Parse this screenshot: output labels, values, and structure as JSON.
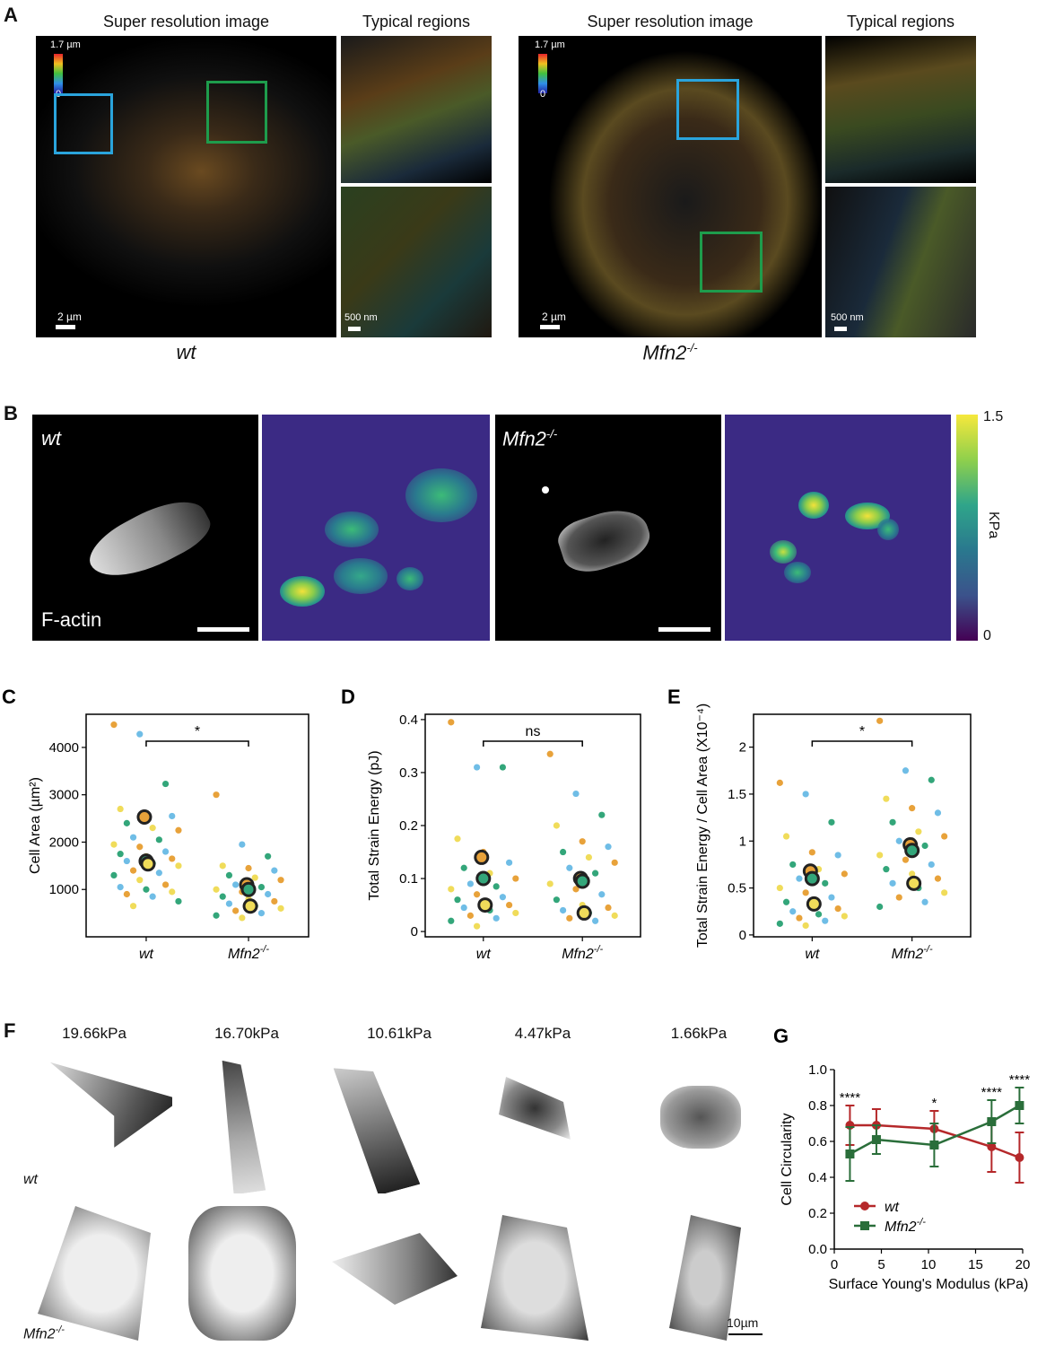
{
  "panelA": {
    "label": "A",
    "left": {
      "title": "Super resolution image",
      "regions_title": "Typical regions",
      "cbar_top": "1.7 µm",
      "cbar_bottom": "0",
      "scale_main": "2 µm",
      "scale_region": "500 nm",
      "genotype": "wt"
    },
    "right": {
      "title": "Super resolution image",
      "regions_title": "Typical regions",
      "cbar_top": "1.7 µm",
      "cbar_bottom": "0",
      "scale_main": "2 µm",
      "scale_region": "500 nm",
      "genotype_base": "Mfn2",
      "genotype_sup": "-/-"
    }
  },
  "panelB": {
    "label": "B",
    "wt_label": "wt",
    "mfn_base": "Mfn2",
    "mfn_sup": "-/-",
    "factin": "F-actin",
    "cbar_max": "1.5",
    "cbar_min": "0",
    "cbar_unit": "KPa"
  },
  "panelF": {
    "label": "F",
    "stiffness": [
      "19.66kPa",
      "16.70kPa",
      "10.61kPa",
      "4.47kPa",
      "1.66kPa"
    ],
    "row1": "wt",
    "row2_base": "Mfn2",
    "row2_sup": "-/-",
    "scale": "10µm"
  },
  "chart_data": [
    {
      "panel": "C",
      "type": "scatter",
      "ylabel": "Cell Area (µm²)",
      "categories": [
        "wt",
        "Mfn2-/-"
      ],
      "yticks": [
        1000,
        2000,
        3000,
        4000
      ],
      "ylim": [
        0,
        4700
      ],
      "significance": "*",
      "means": {
        "wt": [
          2530,
          1600,
          1540
        ],
        "Mfn2-/-": [
          1100,
          1000,
          650
        ]
      },
      "points_wt": [
        4480,
        4280,
        3230,
        2700,
        2600,
        2550,
        2400,
        2300,
        2250,
        2100,
        2050,
        1950,
        1900,
        1800,
        1750,
        1700,
        1650,
        1600,
        1550,
        1500,
        1400,
        1350,
        1300,
        1200,
        1100,
        1050,
        1000,
        950,
        900,
        850,
        750,
        650
      ],
      "points_mfn": [
        3000,
        1950,
        1700,
        1500,
        1450,
        1400,
        1300,
        1250,
        1200,
        1100,
        1050,
        1000,
        950,
        900,
        850,
        800,
        750,
        700,
        650,
        600,
        550,
        500,
        450,
        400
      ]
    },
    {
      "panel": "D",
      "type": "scatter",
      "ylabel": "Total Strain Energy (pJ)",
      "categories": [
        "wt",
        "Mfn2-/-"
      ],
      "yticks": [
        0,
        0.1,
        0.2,
        0.3,
        0.4
      ],
      "ylim": [
        -0.01,
        0.41
      ],
      "significance": "ns",
      "means": {
        "wt": [
          0.14,
          0.1,
          0.05
        ],
        "Mfn2-/-": [
          0.1,
          0.095,
          0.035
        ]
      },
      "points_wt": [
        0.395,
        0.31,
        0.31,
        0.175,
        0.15,
        0.13,
        0.12,
        0.11,
        0.1,
        0.09,
        0.085,
        0.08,
        0.07,
        0.065,
        0.06,
        0.055,
        0.05,
        0.045,
        0.04,
        0.035,
        0.03,
        0.025,
        0.02,
        0.01
      ],
      "points_mfn": [
        0.335,
        0.26,
        0.22,
        0.2,
        0.17,
        0.16,
        0.15,
        0.14,
        0.13,
        0.12,
        0.11,
        0.09,
        0.08,
        0.07,
        0.06,
        0.05,
        0.045,
        0.04,
        0.035,
        0.03,
        0.025,
        0.02
      ]
    },
    {
      "panel": "E",
      "type": "scatter",
      "ylabel": "Total Strain Energy / Cell Area (X10⁻⁴)",
      "categories": [
        "wt",
        "Mfn2-/-"
      ],
      "yticks": [
        0,
        0.5,
        1.0,
        1.5,
        2.0
      ],
      "ylim": [
        -0.02,
        2.35
      ],
      "significance": "*",
      "means": {
        "wt": [
          0.68,
          0.6,
          0.33
        ],
        "Mfn2-/-": [
          0.96,
          0.9,
          0.55
        ]
      },
      "points_wt": [
        1.62,
        1.5,
        1.2,
        1.05,
        0.88,
        0.85,
        0.75,
        0.7,
        0.65,
        0.6,
        0.55,
        0.5,
        0.45,
        0.4,
        0.35,
        0.3,
        0.28,
        0.25,
        0.22,
        0.2,
        0.18,
        0.15,
        0.12,
        0.1
      ],
      "points_mfn": [
        2.28,
        1.75,
        1.65,
        1.45,
        1.35,
        1.3,
        1.2,
        1.1,
        1.05,
        1.0,
        0.95,
        0.85,
        0.8,
        0.75,
        0.7,
        0.65,
        0.6,
        0.55,
        0.5,
        0.45,
        0.4,
        0.35,
        0.3
      ]
    },
    {
      "panel": "G",
      "type": "line",
      "xlabel": "Surface Young's Modulus (kPa)",
      "ylabel": "Cell Circularity",
      "xticks": [
        0,
        5,
        10,
        15,
        20
      ],
      "yticks": [
        0.0,
        0.2,
        0.4,
        0.6,
        0.8,
        1.0
      ],
      "xlim": [
        0,
        20
      ],
      "ylim": [
        0,
        1.0
      ],
      "significance": [
        {
          "x": 1.66,
          "label": "****"
        },
        {
          "x": 10.61,
          "label": "*"
        },
        {
          "x": 16.7,
          "label": "****"
        },
        {
          "x": 19.66,
          "label": "****"
        }
      ],
      "series": [
        {
          "name": "wt",
          "color": "#b5282a",
          "marker": "circle",
          "x": [
            1.66,
            4.47,
            10.61,
            16.7,
            19.66
          ],
          "y": [
            0.69,
            0.69,
            0.67,
            0.57,
            0.51
          ],
          "err": [
            0.11,
            0.09,
            0.1,
            0.14,
            0.14
          ]
        },
        {
          "name": "Mfn2-/-",
          "color": "#2a6e3a",
          "marker": "square",
          "x": [
            1.66,
            4.47,
            10.61,
            16.7,
            19.66
          ],
          "y": [
            0.53,
            0.61,
            0.58,
            0.71,
            0.8
          ],
          "err": [
            0.15,
            0.08,
            0.12,
            0.12,
            0.1
          ]
        }
      ]
    }
  ],
  "colors": {
    "blue_box": "#2aa4dc",
    "green_box": "#1e9c4c",
    "dot_orange": "#e8a23a",
    "dot_blue": "#6fbde6",
    "dot_green": "#33a67a",
    "dot_yellow": "#f0dc5a"
  }
}
